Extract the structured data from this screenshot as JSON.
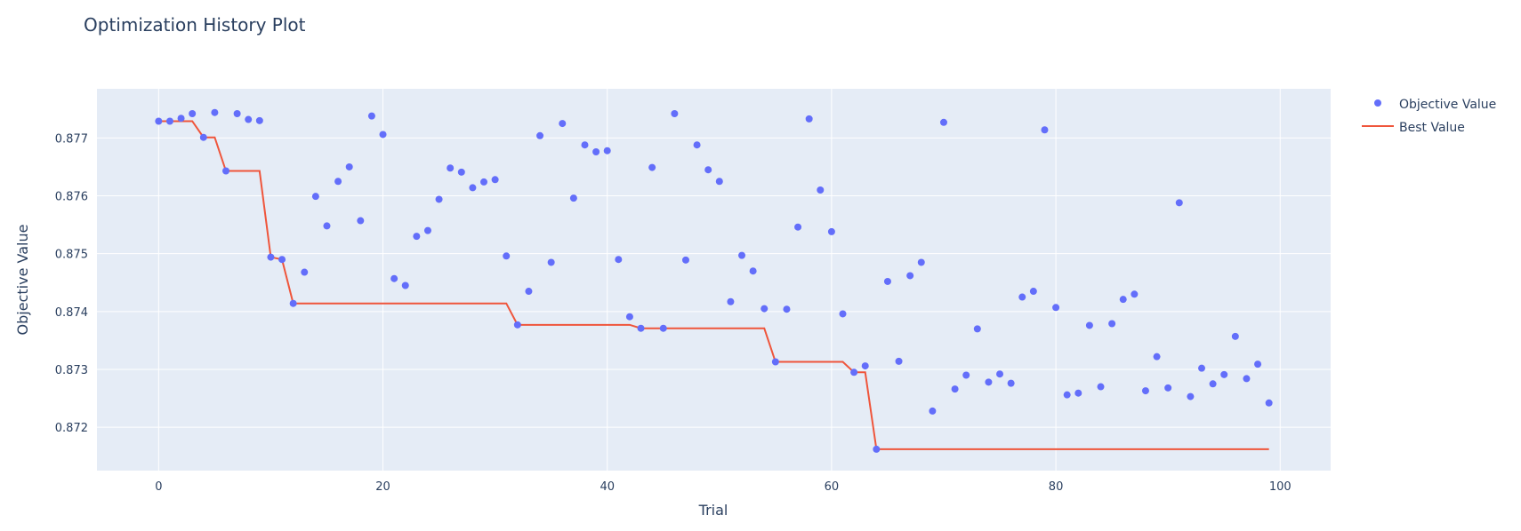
{
  "chart_data": {
    "type": "scatter",
    "title": "Optimization History Plot",
    "xlabel": "Trial",
    "ylabel": "Objective Value",
    "xlim": [
      -5.5,
      104.5
    ],
    "ylim": [
      0.87125,
      0.87785
    ],
    "xticks": [
      0,
      20,
      40,
      60,
      80,
      100
    ],
    "yticks": [
      0.872,
      0.873,
      0.874,
      0.875,
      0.876,
      0.877
    ],
    "yticks_labels": [
      "0.872",
      "0.873",
      "0.874",
      "0.875",
      "0.876",
      "0.877"
    ],
    "grid": true,
    "legend_position": "top-right",
    "colors": {
      "objective": "#636efa",
      "best": "#ef553b",
      "plot_bg": "#e5ecf6",
      "text": "#2a3f5f"
    },
    "series": [
      {
        "name": "Objective Value",
        "mode": "markers",
        "x": [
          0,
          1,
          2,
          3,
          4,
          5,
          6,
          7,
          8,
          9,
          10,
          11,
          12,
          13,
          14,
          15,
          16,
          17,
          18,
          19,
          20,
          21,
          22,
          23,
          24,
          25,
          26,
          27,
          28,
          29,
          30,
          31,
          32,
          33,
          34,
          35,
          36,
          37,
          38,
          39,
          40,
          41,
          42,
          43,
          44,
          45,
          46,
          47,
          48,
          49,
          50,
          51,
          52,
          53,
          54,
          55,
          56,
          57,
          58,
          59,
          60,
          61,
          62,
          63,
          64,
          65,
          66,
          67,
          68,
          69,
          70,
          71,
          72,
          73,
          74,
          75,
          76,
          77,
          78,
          79,
          80,
          81,
          82,
          83,
          84,
          85,
          86,
          87,
          88,
          89,
          90,
          91,
          92,
          93,
          94,
          95,
          96,
          97,
          98,
          99
        ],
        "y": [
          0.87729,
          0.87729,
          0.87734,
          0.87742,
          0.87701,
          0.87744,
          0.87643,
          0.87742,
          0.87732,
          0.8773,
          0.87494,
          0.8749,
          0.87414,
          0.87468,
          0.87599,
          0.87548,
          0.87625,
          0.8765,
          0.87557,
          0.87738,
          0.87706,
          0.87457,
          0.87445,
          0.8753,
          0.8754,
          0.87594,
          0.87648,
          0.87641,
          0.87614,
          0.87624,
          0.87628,
          0.87496,
          0.87377,
          0.87435,
          0.87704,
          0.87485,
          0.87725,
          0.87596,
          0.87688,
          0.87676,
          0.87678,
          0.8749,
          0.87391,
          0.87371,
          0.87649,
          0.87371,
          0.87742,
          0.87489,
          0.87688,
          0.87645,
          0.87625,
          0.87417,
          0.87497,
          0.8747,
          0.87405,
          0.87313,
          0.87404,
          0.87546,
          0.87733,
          0.8761,
          0.87538,
          0.87396,
          0.87295,
          0.87306,
          0.87162,
          0.87452,
          0.87314,
          0.87462,
          0.87485,
          0.87228,
          0.87727,
          0.87266,
          0.8729,
          0.8737,
          0.87278,
          0.87292,
          0.87276,
          0.87425,
          0.87435,
          0.87714,
          0.87407,
          0.87256,
          0.87259,
          0.87376,
          0.8727,
          0.87379,
          0.87421,
          0.8743,
          0.87263,
          0.87322,
          0.87268,
          0.87588,
          0.87253,
          0.87302,
          0.87275,
          0.87291,
          0.87357,
          0.87284,
          0.87309,
          0.87242
        ]
      },
      {
        "name": "Best Value",
        "mode": "line"
      }
    ]
  }
}
